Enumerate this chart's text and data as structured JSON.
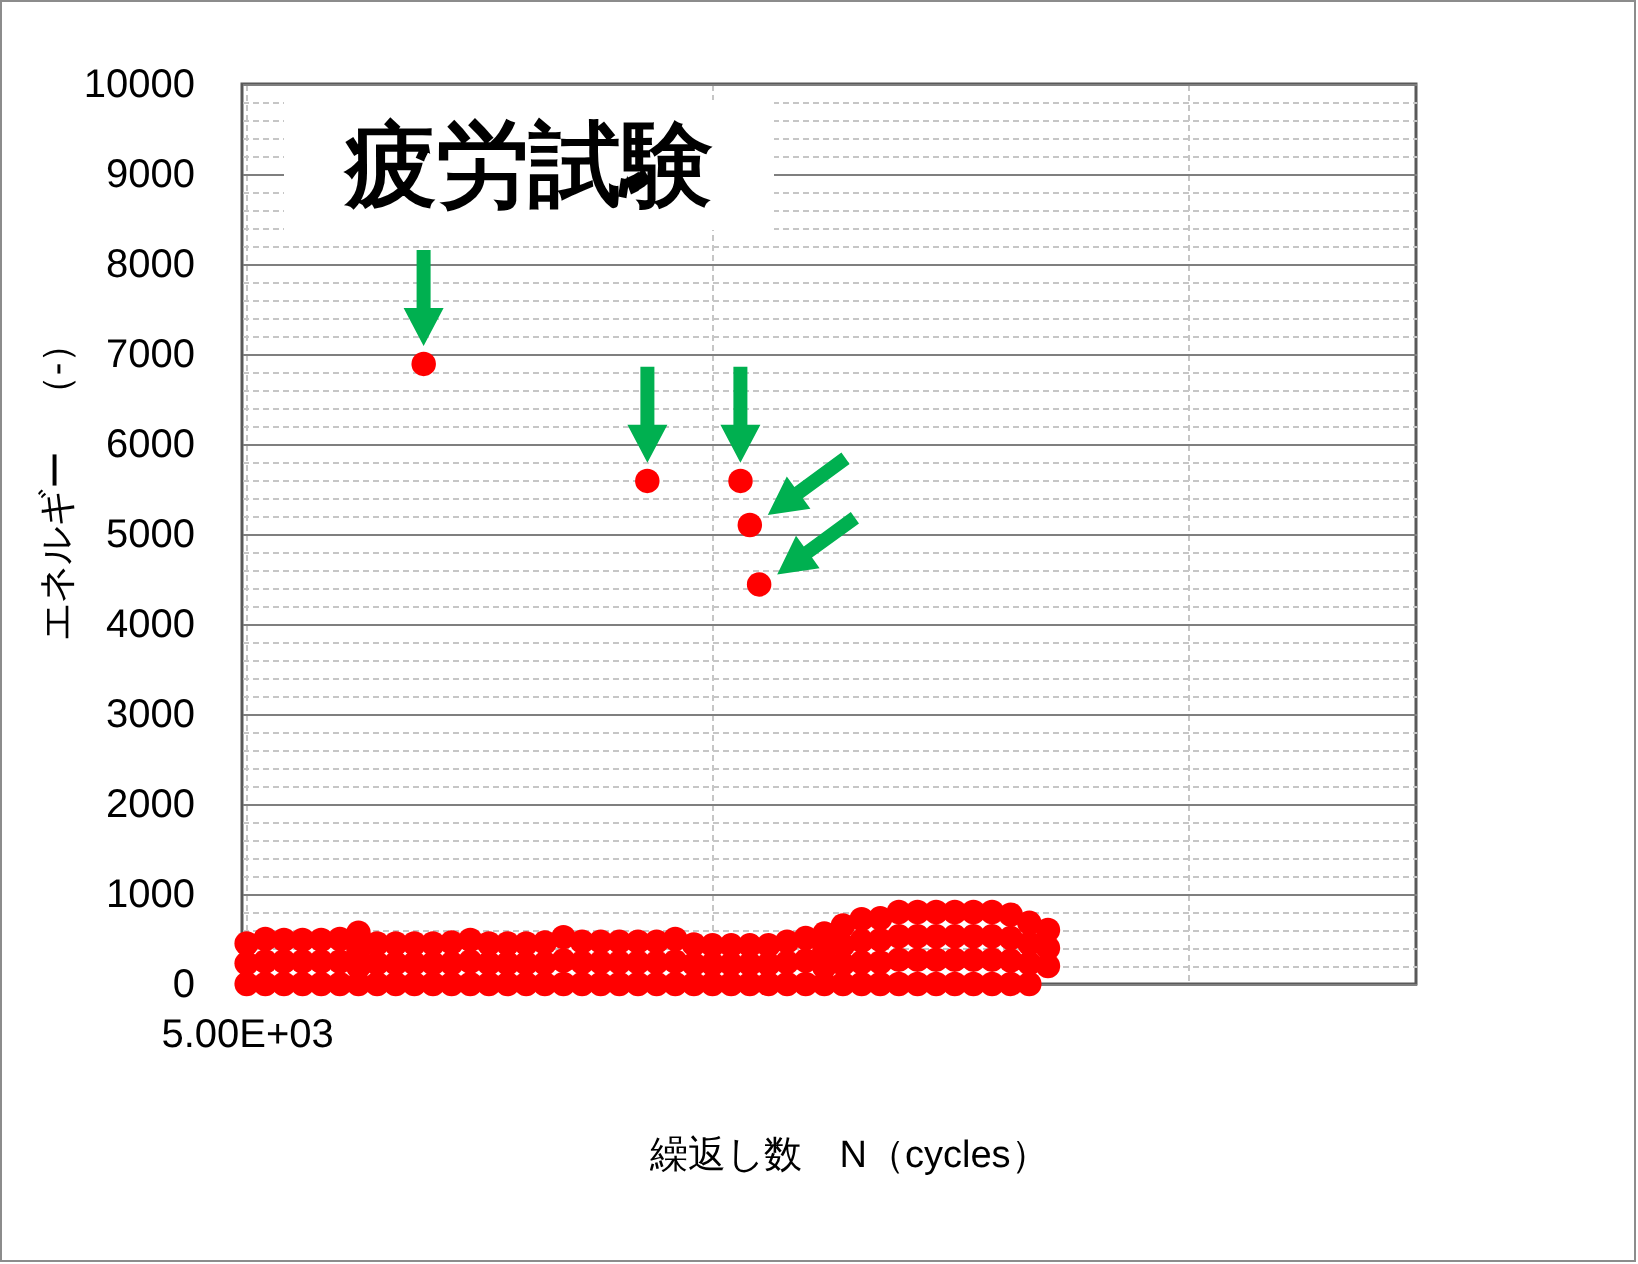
{
  "chart_data": {
    "type": "scatter",
    "title": "疲労試験",
    "xlabel": "繰返し数　N（cycles）",
    "ylabel": "エネルギー　（-）",
    "categories": [
      "5.00E+03",
      null,
      null,
      null,
      null,
      null,
      null,
      null,
      null,
      null,
      null,
      null,
      null,
      null,
      null,
      null,
      null,
      null,
      null,
      null,
      null,
      null,
      null,
      null,
      null,
      null,
      null,
      null,
      null,
      null,
      null,
      null,
      null,
      null,
      null,
      null,
      null,
      null,
      null,
      null,
      null,
      null,
      null,
      null,
      null,
      null,
      null,
      null,
      null,
      null,
      null,
      null,
      null,
      null,
      null,
      null,
      null,
      null,
      null,
      null,
      null,
      null,
      null,
      null,
      null,
      null,
      null,
      null,
      null,
      null,
      null,
      null,
      null,
      null,
      null,
      null,
      null,
      null,
      null,
      null,
      null,
      null,
      null,
      null,
      null,
      null,
      null,
      null,
      null,
      null,
      null,
      null,
      null,
      null,
      null,
      null,
      null,
      null,
      null,
      null,
      null,
      null,
      null,
      null,
      null,
      null,
      null,
      null,
      null,
      null,
      null,
      null,
      null,
      null,
      null,
      null,
      null,
      null,
      null,
      null,
      null,
      null,
      null,
      null,
      null,
      null
    ],
    "ylim": [
      0,
      10000
    ],
    "yticks": [
      0,
      {
        "value": 200,
        "label": null
      },
      {
        "value": 400,
        "label": null
      },
      {
        "value": 600,
        "label": null
      },
      {
        "value": 800,
        "label": null
      },
      1000,
      {
        "value": 1200,
        "label": null
      },
      {
        "value": 1400,
        "label": null
      },
      {
        "value": 1600,
        "label": null
      },
      {
        "value": 1800,
        "label": null
      },
      2000,
      {
        "value": 2200,
        "label": null
      },
      {
        "value": 2400,
        "label": null
      },
      {
        "value": 2600,
        "label": null
      },
      {
        "value": 2800,
        "label": null
      },
      3000,
      {
        "value": 3200,
        "label": null
      },
      {
        "value": 3400,
        "label": null
      },
      {
        "value": 3600,
        "label": null
      },
      {
        "value": 3800,
        "label": null
      },
      4000,
      {
        "value": 4200,
        "label": null
      },
      {
        "value": 4400,
        "label": null
      },
      {
        "value": 4600,
        "label": null
      },
      {
        "value": 4800,
        "label": null
      },
      5000,
      {
        "value": 5200,
        "label": null
      },
      {
        "value": 5400,
        "label": null
      },
      {
        "value": 5600,
        "label": null
      },
      {
        "value": 5800,
        "label": null
      },
      6000,
      {
        "value": 6200,
        "label": null
      },
      {
        "value": 6400,
        "label": null
      },
      {
        "value": 6600,
        "label": null
      },
      {
        "value": 6800,
        "label": null
      },
      7000,
      {
        "value": 7200,
        "label": null
      },
      {
        "value": 7400,
        "label": null
      },
      {
        "value": 7600,
        "label": null
      },
      {
        "value": 7800,
        "label": null
      },
      8000,
      {
        "value": 8200,
        "label": null
      },
      {
        "value": 8400,
        "label": null
      },
      {
        "value": 8600,
        "label": null
      },
      {
        "value": 8800,
        "label": null
      },
      9000,
      {
        "value": 9200,
        "label": null
      },
      {
        "value": 9400,
        "label": null
      },
      {
        "value": 9600,
        "label": null
      },
      {
        "value": 9800,
        "label": null
      },
      10000
    ],
    "grid": true,
    "marker": "circle",
    "series": [
      {
        "color": "#ff0000",
        "values": [
          0,
          null,
          0,
          null,
          0,
          null,
          0,
          null,
          0,
          null,
          0,
          null,
          0,
          null,
          0,
          null,
          0,
          null,
          0,
          null,
          0,
          null,
          0,
          null,
          0,
          null,
          0,
          null,
          0,
          null,
          0,
          null,
          0,
          null,
          0,
          null,
          0,
          null,
          0,
          null,
          0,
          null,
          0,
          null,
          0,
          null,
          0,
          null,
          0,
          null,
          0,
          null,
          0,
          null,
          0,
          null,
          0,
          null,
          0,
          null,
          0,
          null,
          0,
          null,
          0,
          null,
          0,
          null,
          0,
          null,
          0,
          null,
          0,
          null,
          0,
          null,
          0,
          null,
          0,
          null,
          0,
          null,
          0,
          null,
          0,
          null,
          null,
          null,
          null,
          null,
          null,
          null,
          null,
          null,
          null,
          null,
          null,
          null,
          null,
          null,
          null,
          null,
          null,
          null,
          null,
          null,
          null,
          null,
          null,
          null,
          null,
          null,
          null,
          null,
          null,
          null,
          null,
          null,
          null,
          null,
          null,
          null,
          null,
          null,
          null,
          null
        ]
      },
      {
        "color": "#ff0000",
        "values": [
          230,
          null,
          250,
          null,
          250,
          null,
          250,
          null,
          250,
          null,
          250,
          null,
          190,
          null,
          230,
          null,
          230,
          null,
          230,
          null,
          230,
          null,
          230,
          null,
          250,
          null,
          230,
          null,
          230,
          null,
          230,
          null,
          230,
          null,
          260,
          null,
          240,
          null,
          240,
          null,
          240,
          null,
          240,
          null,
          240,
          null,
          250,
          null,
          220,
          null,
          220,
          null,
          220,
          null,
          220,
          null,
          220,
          null,
          240,
          null,
          260,
          null,
          190,
          null,
          220,
          null,
          240,
          null,
          240,
          null,
          270,
          null,
          270,
          null,
          270,
          null,
          270,
          null,
          270,
          null,
          270,
          null,
          260,
          null,
          230,
          null,
          200,
          null,
          null,
          null,
          null,
          null,
          null,
          null,
          null,
          null,
          null,
          null,
          null,
          null,
          null,
          null,
          null,
          null,
          null,
          null,
          null,
          null,
          null,
          null,
          null,
          null,
          null,
          null,
          null,
          null,
          null,
          null,
          null,
          null,
          null,
          null,
          null,
          null,
          null,
          null
        ]
      },
      {
        "color": "#ff0000",
        "values": [
          null,
          null,
          null,
          null,
          null,
          null,
          null,
          null,
          null,
          null,
          null,
          null,
          380,
          null,
          null,
          null,
          null,
          null,
          null,
          null,
          null,
          null,
          null,
          null,
          null,
          null,
          null,
          null,
          null,
          null,
          null,
          null,
          null,
          null,
          null,
          null,
          null,
          null,
          null,
          null,
          null,
          null,
          null,
          null,
          null,
          null,
          null,
          null,
          null,
          null,
          null,
          null,
          null,
          null,
          null,
          null,
          null,
          null,
          null,
          null,
          null,
          null,
          370,
          null,
          430,
          null,
          480,
          null,
          490,
          null,
          530,
          null,
          530,
          null,
          530,
          null,
          530,
          null,
          530,
          null,
          530,
          null,
          510,
          null,
          450,
          null,
          400,
          null,
          null,
          null,
          null,
          null,
          null,
          null,
          null,
          null,
          null,
          null,
          null,
          null,
          null,
          null,
          null,
          null,
          null,
          null,
          null,
          null,
          null,
          null,
          null,
          null,
          null,
          null,
          null,
          null,
          null,
          null,
          null,
          null,
          null,
          null,
          null,
          null,
          null,
          null
        ]
      },
      {
        "color": "#ff0000",
        "values": [
          450,
          null,
          500,
          null,
          490,
          null,
          490,
          null,
          490,
          null,
          500,
          null,
          570,
          null,
          450,
          null,
          450,
          null,
          450,
          null,
          450,
          null,
          460,
          null,
          490,
          null,
          450,
          null,
          450,
          null,
          450,
          null,
          460,
          null,
          520,
          null,
          470,
          null,
          470,
          null,
          470,
          null,
          470,
          null,
          470,
          null,
          500,
          null,
          440,
          null,
          430,
          null,
          430,
          null,
          430,
          null,
          430,
          null,
          470,
          null,
          510,
          null,
          560,
          null,
          650,
          null,
          720,
          null,
          730,
          null,
          800,
          null,
          800,
          null,
          800,
          null,
          800,
          null,
          800,
          null,
          800,
          null,
          770,
          null,
          680,
          null,
          600,
          null,
          null,
          null,
          null,
          null,
          null,
          null,
          null,
          null,
          null,
          null,
          null,
          null,
          null,
          null,
          null,
          null,
          null,
          null,
          null,
          null,
          null,
          null,
          null,
          null,
          null,
          null,
          null,
          null,
          null,
          null,
          null,
          null,
          null,
          null,
          null,
          null,
          null,
          null
        ]
      },
      {
        "color": "#ff0000",
        "values": [
          null,
          null,
          null,
          null,
          null,
          null,
          null,
          null,
          null,
          null,
          null,
          null,
          null,
          null,
          null,
          null,
          null,
          null,
          null,
          6890,
          null,
          null,
          null,
          null,
          null,
          null,
          null,
          null,
          null,
          null,
          null,
          null,
          null,
          null,
          null,
          null,
          null,
          null,
          null,
          null,
          null,
          null,
          null,
          5590,
          null,
          null,
          null,
          null,
          null,
          null,
          null,
          null,
          null,
          5590,
          5100,
          4440,
          null,
          null,
          null,
          null,
          null,
          null,
          null,
          null,
          null,
          null,
          null,
          null,
          null,
          null,
          null,
          null,
          null,
          null,
          null,
          null,
          null,
          null,
          null,
          null,
          null,
          null,
          null,
          null,
          null,
          null,
          null,
          null,
          null,
          null,
          null,
          null,
          null,
          null,
          null,
          null,
          null,
          null,
          null,
          null,
          null,
          null,
          null,
          null,
          null,
          null,
          null,
          null,
          null,
          null,
          null,
          null,
          null,
          null,
          null,
          null,
          null,
          null,
          null,
          null,
          null,
          null,
          null,
          null,
          null,
          null
        ]
      }
    ]
  }
}
